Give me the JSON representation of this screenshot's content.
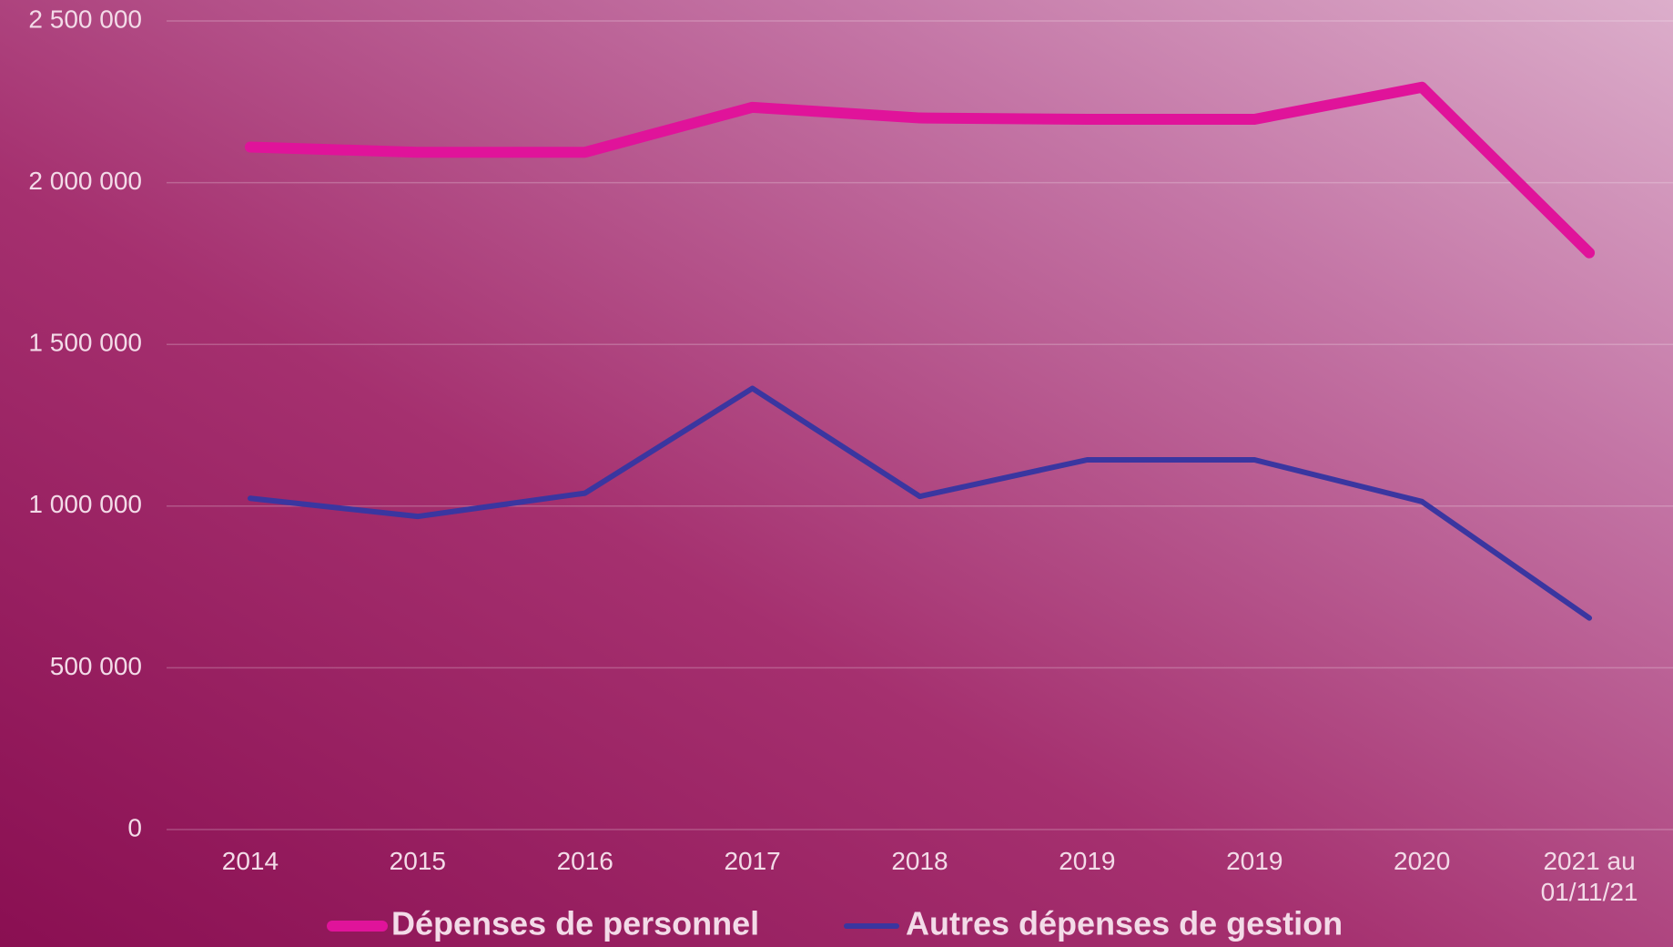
{
  "chart_data": {
    "type": "line",
    "categories": [
      "2014",
      "2015",
      "2016",
      "2017",
      "2018",
      "2019",
      "2019",
      "2020",
      "2021 au 01/11/21"
    ],
    "series": [
      {
        "name": "Dépenses de personnel",
        "color": "#e0139a",
        "values": [
          2110000,
          2094000,
          2094000,
          2233000,
          2200000,
          2196000,
          2196000,
          2295000,
          1783000
        ]
      },
      {
        "name": "Autres dépenses de gestion",
        "color": "#3a36a0",
        "values": [
          1024000,
          968000,
          1040000,
          1364000,
          1030000,
          1143000,
          1143000,
          1014000,
          654000
        ]
      }
    ],
    "ylim": [
      0,
      2500000
    ],
    "yticks": [
      0,
      {
        "value": 500000,
        "label": "500 000"
      },
      {
        "value": 1000000,
        "label": "1 000 000"
      },
      {
        "value": 1500000,
        "label": "1 500 000"
      },
      {
        "value": 2000000,
        "label": "2 000 000"
      },
      {
        "value": 2500000,
        "label": "2 500 000"
      }
    ],
    "grid": true,
    "legend": "bottom"
  }
}
